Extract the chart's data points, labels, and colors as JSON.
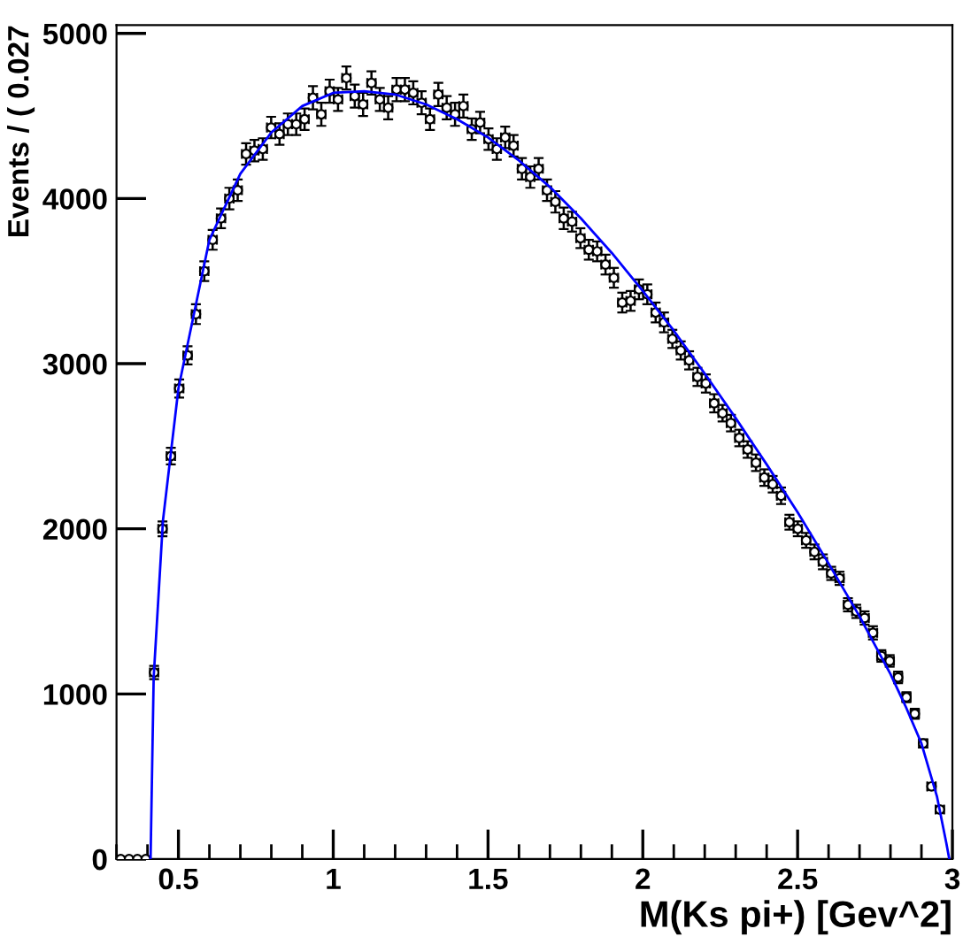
{
  "chart_data": {
    "type": "scatter",
    "xlabel": "M(Ks pi+) [Gev^2]",
    "ylabel": "Events / ( 0.027",
    "xlim": [
      0.3,
      3.0
    ],
    "ylim": [
      0,
      5050
    ],
    "xticks": [
      0.5,
      1,
      1.5,
      2,
      2.5,
      3
    ],
    "yticks": [
      0,
      1000,
      2000,
      3000,
      4000,
      5000
    ],
    "grid": false,
    "marker": "circle",
    "series": [
      {
        "color": "#000000",
        "x": [
          0.3135,
          0.3405,
          0.3675,
          0.3945,
          0.4215,
          0.4485,
          0.4755,
          0.5025,
          0.5295,
          0.5565,
          0.5835,
          0.6105,
          0.6375,
          0.6645,
          0.6915,
          0.7185,
          0.7455,
          0.7725,
          0.7995,
          0.8265,
          0.8535,
          0.8805,
          0.9075,
          0.9345,
          0.9615,
          0.9885,
          1.0155,
          1.0425,
          1.0695,
          1.0965,
          1.1235,
          1.1505,
          1.1775,
          1.2045,
          1.2315,
          1.2585,
          1.2855,
          1.3125,
          1.3395,
          1.3665,
          1.3935,
          1.4205,
          1.4475,
          1.4745,
          1.5015,
          1.5285,
          1.5555,
          1.5825,
          1.6095,
          1.6365,
          1.6635,
          1.6905,
          1.7175,
          1.7445,
          1.7715,
          1.7985,
          1.8255,
          1.8525,
          1.8795,
          1.9065,
          1.9335,
          1.9605,
          1.9875,
          2.0145,
          2.0415,
          2.0685,
          2.0955,
          2.1225,
          2.1495,
          2.1765,
          2.2035,
          2.2305,
          2.2575,
          2.2845,
          2.3115,
          2.3385,
          2.3655,
          2.3925,
          2.4195,
          2.4465,
          2.4735,
          2.5005,
          2.5275,
          2.5545,
          2.5815,
          2.6085,
          2.6355,
          2.6625,
          2.6895,
          2.7165,
          2.7435,
          2.7705,
          2.7975,
          2.8245,
          2.8515,
          2.8785,
          2.9055,
          2.9325,
          2.9595
        ],
        "values": [
          0,
          0,
          0,
          0,
          1130,
          2000,
          2440,
          2850,
          3050,
          3300,
          3560,
          3750,
          3880,
          4000,
          4050,
          4270,
          4290,
          4300,
          4430,
          4390,
          4450,
          4450,
          4480,
          4610,
          4510,
          4650,
          4600,
          4730,
          4620,
          4570,
          4700,
          4600,
          4550,
          4660,
          4660,
          4640,
          4580,
          4480,
          4630,
          4550,
          4510,
          4560,
          4420,
          4460,
          4360,
          4300,
          4370,
          4320,
          4180,
          4130,
          4180,
          4050,
          3980,
          3880,
          3860,
          3760,
          3690,
          3680,
          3600,
          3520,
          3370,
          3380,
          3450,
          3420,
          3310,
          3250,
          3150,
          3080,
          3020,
          2920,
          2880,
          2760,
          2700,
          2640,
          2550,
          2480,
          2400,
          2310,
          2270,
          2200,
          2040,
          2000,
          1930,
          1860,
          1800,
          1730,
          1700,
          1540,
          1500,
          1460,
          1370,
          1230,
          1200,
          1100,
          980,
          880,
          700,
          440,
          300
        ],
        "errors": [
          null,
          null,
          null,
          null,
          40,
          45,
          50,
          55,
          55,
          60,
          60,
          60,
          60,
          65,
          65,
          65,
          65,
          65,
          65,
          65,
          65,
          65,
          65,
          70,
          70,
          70,
          70,
          70,
          70,
          70,
          70,
          70,
          70,
          70,
          70,
          70,
          70,
          65,
          70,
          70,
          70,
          70,
          65,
          65,
          65,
          65,
          65,
          65,
          65,
          65,
          65,
          65,
          65,
          65,
          60,
          60,
          60,
          60,
          60,
          60,
          60,
          60,
          60,
          60,
          60,
          60,
          55,
          55,
          55,
          55,
          55,
          55,
          50,
          50,
          50,
          50,
          50,
          50,
          50,
          50,
          45,
          45,
          45,
          45,
          45,
          40,
          40,
          40,
          40,
          40,
          40,
          35,
          35,
          35,
          30,
          30,
          25,
          20,
          20
        ],
        "xerrors": [
          null,
          null,
          null,
          null,
          0.0135,
          0.0135,
          0.0135,
          0.0135,
          0.0135,
          0.0135,
          0.0135,
          0.0135,
          0.0135,
          0.0135,
          0.0135,
          0.0135,
          0.0135,
          0.0135,
          0.0135,
          0.0135,
          0.0135,
          0.0135,
          0.0135,
          0.0135,
          0.0135,
          0.0135,
          0.0135,
          0.0135,
          0.0135,
          0.0135,
          0.0135,
          0.0135,
          0.0135,
          0.0135,
          0.0135,
          0.0135,
          0.0135,
          0.0135,
          0.0135,
          0.0135,
          0.0135,
          0.0135,
          0.0135,
          0.0135,
          0.0135,
          0.0135,
          0.0135,
          0.0135,
          0.0135,
          0.0135,
          0.0135,
          0.0135,
          0.0135,
          0.0135,
          0.0135,
          0.0135,
          0.0135,
          0.0135,
          0.0135,
          0.0135,
          0.0135,
          0.0135,
          0.0135,
          0.0135,
          0.0135,
          0.0135,
          0.0135,
          0.0135,
          0.0135,
          0.0135,
          0.0135,
          0.0135,
          0.0135,
          0.0135,
          0.0135,
          0.0135,
          0.0135,
          0.0135,
          0.0135,
          0.0135,
          0.0135,
          0.0135,
          0.0135,
          0.0135,
          0.0135,
          0.0135,
          0.0135,
          0.0135,
          0.0135,
          0.0135,
          0.0135,
          0.0135,
          0.0135,
          0.0135,
          0.0135,
          0.0135,
          0.0135,
          0.0135,
          0.0135
        ]
      },
      {
        "type": "line",
        "color": "#0000ff",
        "marker": "none",
        "line_style": "solid",
        "x": [
          0.41,
          0.42,
          0.45,
          0.5,
          0.6,
          0.7,
          0.8,
          0.9,
          1.0,
          1.1,
          1.2,
          1.3,
          1.4,
          1.5,
          1.6,
          1.7,
          1.8,
          1.9,
          2.0,
          2.1,
          2.2,
          2.3,
          2.4,
          2.5,
          2.6,
          2.7,
          2.8,
          2.85,
          2.9,
          2.95,
          2.98,
          2.99
        ],
        "values": [
          0,
          1100,
          2050,
          2850,
          3750,
          4150,
          4400,
          4560,
          4640,
          4650,
          4630,
          4570,
          4480,
          4370,
          4230,
          4070,
          3880,
          3670,
          3440,
          3200,
          2940,
          2670,
          2390,
          2100,
          1790,
          1470,
          1120,
          920,
          700,
          380,
          100,
          0
        ]
      }
    ]
  }
}
